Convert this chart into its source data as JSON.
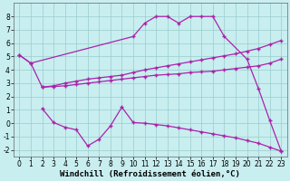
{
  "xlabel": "Windchill (Refroidissement éolien,°C)",
  "background_color": "#c8eef0",
  "grid_color": "#99cccc",
  "line_color": "#aa22aa",
  "xlim": [
    -0.5,
    23.5
  ],
  "ylim": [
    -2.5,
    9.0
  ],
  "xticks": [
    0,
    1,
    2,
    3,
    4,
    5,
    6,
    7,
    8,
    9,
    10,
    11,
    12,
    13,
    14,
    15,
    16,
    17,
    18,
    19,
    20,
    21,
    22,
    23
  ],
  "yticks": [
    -2,
    -1,
    0,
    1,
    2,
    3,
    4,
    5,
    6,
    7,
    8
  ],
  "line1_x": [
    0,
    1,
    2,
    3,
    4,
    5,
    6,
    7,
    8,
    9,
    10,
    11,
    12,
    13,
    14,
    15,
    16,
    17,
    18,
    19,
    20,
    21,
    22,
    23
  ],
  "line1_y": [
    5.1,
    4.5,
    2.7,
    2.8,
    3.0,
    3.15,
    3.3,
    3.4,
    3.5,
    3.6,
    3.8,
    4.0,
    4.15,
    4.3,
    4.45,
    4.6,
    4.75,
    4.9,
    5.05,
    5.2,
    5.4,
    5.6,
    5.9,
    6.2
  ],
  "line2_x": [
    2,
    3,
    4,
    5,
    6,
    7,
    8,
    9,
    10,
    11,
    12,
    13,
    14,
    15,
    16,
    17,
    18,
    19,
    20,
    21,
    22,
    23
  ],
  "line2_y": [
    2.7,
    2.75,
    2.8,
    2.9,
    3.0,
    3.1,
    3.2,
    3.3,
    3.4,
    3.5,
    3.6,
    3.65,
    3.7,
    3.8,
    3.85,
    3.9,
    4.0,
    4.1,
    4.2,
    4.3,
    4.5,
    4.8
  ],
  "line3_x": [
    2,
    3,
    4,
    5,
    6,
    7,
    8,
    9,
    10,
    11,
    12,
    13,
    14,
    15,
    16,
    17,
    18,
    19,
    20,
    21,
    22,
    23
  ],
  "line3_y": [
    1.1,
    0.05,
    -0.3,
    -0.5,
    -1.7,
    -1.2,
    -0.2,
    1.2,
    0.05,
    0.0,
    -0.1,
    -0.2,
    -0.35,
    -0.5,
    -0.65,
    -0.8,
    -0.95,
    -1.1,
    -1.3,
    -1.5,
    -1.8,
    -2.1
  ],
  "line4_x": [
    0,
    1,
    10,
    11,
    12,
    13,
    14,
    15,
    16,
    17,
    18,
    20,
    21,
    22,
    23
  ],
  "line4_y": [
    5.1,
    4.5,
    6.5,
    7.5,
    8.0,
    8.0,
    7.5,
    8.0,
    8.0,
    8.0,
    6.5,
    4.8,
    2.6,
    0.2,
    -2.1
  ],
  "marker": "+",
  "markersize": 3,
  "linewidth": 0.9,
  "xlabel_fontsize": 6.5,
  "tick_fontsize": 5.5
}
